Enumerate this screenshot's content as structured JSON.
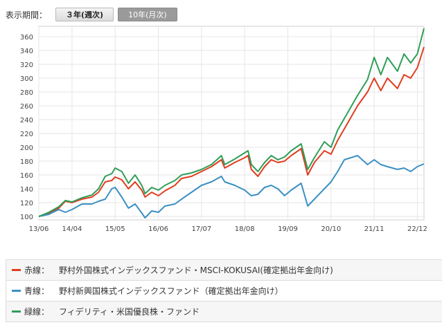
{
  "period": {
    "label": "表示期間：",
    "options": [
      {
        "label": "３年(週次)",
        "active": true
      },
      {
        "label": "10年(月次)",
        "active": false
      }
    ]
  },
  "legend": [
    {
      "name": "赤線：",
      "fund": "野村外国株式インデックスファンド・MSCI-KOKUSAI(確定拠出年金向け)",
      "color": "#e03c1f"
    },
    {
      "name": "青線：",
      "fund": "野村新興国株式インデックスファンド（確定拠出年金向け）",
      "color": "#3a8fc4"
    },
    {
      "name": "緑線：",
      "fund": "フィデリティ・米国優良株・ファンド",
      "color": "#2e9e57"
    }
  ],
  "chart_data": {
    "type": "line",
    "x_start": "13/06",
    "x_end": "23/02",
    "xticks": [
      "13/06",
      "14/04",
      "15/05",
      "16/06",
      "17/07",
      "18/08",
      "19/09",
      "20/10",
      "21/11",
      "22/12"
    ],
    "ylim": [
      95,
      375
    ],
    "yticks": [
      100,
      120,
      140,
      160,
      180,
      200,
      220,
      240,
      260,
      280,
      300,
      320,
      340,
      360
    ],
    "grid": true,
    "series": [
      {
        "color": "#e03c1f",
        "points": [
          [
            "13/06",
            100
          ],
          [
            "13/09",
            104
          ],
          [
            "13/12",
            112
          ],
          [
            "14/02",
            122
          ],
          [
            "14/04",
            120
          ],
          [
            "14/07",
            125
          ],
          [
            "14/10",
            128
          ],
          [
            "14/12",
            135
          ],
          [
            "15/02",
            150
          ],
          [
            "15/04",
            152
          ],
          [
            "15/05",
            157
          ],
          [
            "15/07",
            153
          ],
          [
            "15/09",
            140
          ],
          [
            "15/11",
            150
          ],
          [
            "16/01",
            138
          ],
          [
            "16/02",
            128
          ],
          [
            "16/04",
            135
          ],
          [
            "16/06",
            130
          ],
          [
            "16/08",
            137
          ],
          [
            "16/11",
            145
          ],
          [
            "17/01",
            155
          ],
          [
            "17/04",
            158
          ],
          [
            "17/07",
            165
          ],
          [
            "17/10",
            172
          ],
          [
            "18/01",
            182
          ],
          [
            "18/02",
            170
          ],
          [
            "18/05",
            178
          ],
          [
            "18/08",
            185
          ],
          [
            "18/09",
            188
          ],
          [
            "18/10",
            168
          ],
          [
            "18/12",
            158
          ],
          [
            "19/02",
            172
          ],
          [
            "19/04",
            182
          ],
          [
            "19/06",
            178
          ],
          [
            "19/08",
            180
          ],
          [
            "19/10",
            188
          ],
          [
            "20/01",
            198
          ],
          [
            "20/03",
            160
          ],
          [
            "20/05",
            178
          ],
          [
            "20/08",
            195
          ],
          [
            "20/10",
            190
          ],
          [
            "20/12",
            210
          ],
          [
            "21/03",
            235
          ],
          [
            "21/06",
            260
          ],
          [
            "21/09",
            280
          ],
          [
            "21/11",
            300
          ],
          [
            "22/01",
            282
          ],
          [
            "22/03",
            300
          ],
          [
            "22/06",
            285
          ],
          [
            "22/08",
            305
          ],
          [
            "22/10",
            300
          ],
          [
            "22/12",
            315
          ],
          [
            "23/02",
            345
          ]
        ]
      },
      {
        "color": "#3a8fc4",
        "points": [
          [
            "13/06",
            100
          ],
          [
            "13/09",
            103
          ],
          [
            "13/12",
            110
          ],
          [
            "14/02",
            106
          ],
          [
            "14/04",
            110
          ],
          [
            "14/07",
            118
          ],
          [
            "14/10",
            118
          ],
          [
            "14/12",
            122
          ],
          [
            "15/02",
            125
          ],
          [
            "15/04",
            140
          ],
          [
            "15/05",
            142
          ],
          [
            "15/07",
            128
          ],
          [
            "15/09",
            112
          ],
          [
            "15/11",
            118
          ],
          [
            "16/01",
            105
          ],
          [
            "16/02",
            98
          ],
          [
            "16/04",
            108
          ],
          [
            "16/06",
            106
          ],
          [
            "16/08",
            115
          ],
          [
            "16/11",
            118
          ],
          [
            "17/01",
            125
          ],
          [
            "17/04",
            135
          ],
          [
            "17/07",
            145
          ],
          [
            "17/10",
            150
          ],
          [
            "18/01",
            158
          ],
          [
            "18/02",
            150
          ],
          [
            "18/05",
            145
          ],
          [
            "18/08",
            138
          ],
          [
            "18/10",
            130
          ],
          [
            "18/12",
            132
          ],
          [
            "19/02",
            142
          ],
          [
            "19/04",
            145
          ],
          [
            "19/06",
            140
          ],
          [
            "19/08",
            130
          ],
          [
            "19/10",
            138
          ],
          [
            "20/01",
            148
          ],
          [
            "20/03",
            115
          ],
          [
            "20/05",
            125
          ],
          [
            "20/08",
            140
          ],
          [
            "20/10",
            150
          ],
          [
            "20/12",
            165
          ],
          [
            "21/02",
            182
          ],
          [
            "21/04",
            185
          ],
          [
            "21/06",
            188
          ],
          [
            "21/09",
            175
          ],
          [
            "21/11",
            182
          ],
          [
            "22/01",
            175
          ],
          [
            "22/03",
            172
          ],
          [
            "22/06",
            168
          ],
          [
            "22/08",
            170
          ],
          [
            "22/10",
            165
          ],
          [
            "22/12",
            172
          ],
          [
            "23/02",
            176
          ]
        ]
      },
      {
        "color": "#2e9e57",
        "points": [
          [
            "13/06",
            100
          ],
          [
            "13/09",
            106
          ],
          [
            "13/12",
            114
          ],
          [
            "14/02",
            123
          ],
          [
            "14/04",
            121
          ],
          [
            "14/07",
            127
          ],
          [
            "14/10",
            131
          ],
          [
            "14/12",
            140
          ],
          [
            "15/02",
            158
          ],
          [
            "15/04",
            162
          ],
          [
            "15/05",
            170
          ],
          [
            "15/07",
            165
          ],
          [
            "15/09",
            148
          ],
          [
            "15/11",
            160
          ],
          [
            "16/01",
            145
          ],
          [
            "16/02",
            133
          ],
          [
            "16/04",
            142
          ],
          [
            "16/06",
            138
          ],
          [
            "16/08",
            145
          ],
          [
            "16/11",
            152
          ],
          [
            "17/01",
            160
          ],
          [
            "17/04",
            163
          ],
          [
            "17/07",
            168
          ],
          [
            "17/10",
            175
          ],
          [
            "18/01",
            188
          ],
          [
            "18/02",
            175
          ],
          [
            "18/05",
            183
          ],
          [
            "18/08",
            192
          ],
          [
            "18/09",
            195
          ],
          [
            "18/10",
            175
          ],
          [
            "18/12",
            165
          ],
          [
            "19/02",
            178
          ],
          [
            "19/04",
            188
          ],
          [
            "19/06",
            182
          ],
          [
            "19/08",
            186
          ],
          [
            "19/10",
            195
          ],
          [
            "20/01",
            205
          ],
          [
            "20/03",
            168
          ],
          [
            "20/05",
            185
          ],
          [
            "20/08",
            208
          ],
          [
            "20/10",
            200
          ],
          [
            "20/12",
            225
          ],
          [
            "21/03",
            250
          ],
          [
            "21/06",
            275
          ],
          [
            "21/09",
            298
          ],
          [
            "21/11",
            330
          ],
          [
            "22/01",
            305
          ],
          [
            "22/03",
            330
          ],
          [
            "22/06",
            310
          ],
          [
            "22/08",
            335
          ],
          [
            "22/10",
            322
          ],
          [
            "22/12",
            335
          ],
          [
            "23/02",
            372
          ]
        ]
      }
    ]
  }
}
